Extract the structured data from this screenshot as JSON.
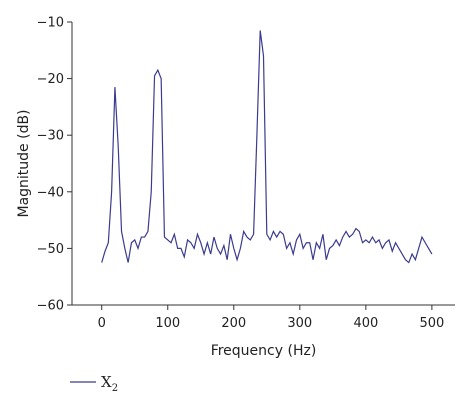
{
  "chart_data": {
    "type": "line",
    "xlabel": "Frequency (Hz)",
    "ylabel": "Magnitude (dB)",
    "xlim": [
      -45,
      535
    ],
    "ylim": [
      -60,
      -10
    ],
    "xticks": [
      0,
      100,
      200,
      300,
      400,
      500
    ],
    "yticks": [
      -10,
      -20,
      -30,
      -40,
      -50,
      -60
    ],
    "xtick_labels": [
      "0",
      "100",
      "200",
      "300",
      "400",
      "500"
    ],
    "ytick_labels": [
      "−10",
      "−20",
      "−30",
      "−40",
      "−50",
      "−60"
    ],
    "legend": {
      "position": "bottom-left",
      "label_main": "X",
      "label_sub": "2"
    },
    "colors": {
      "line": "#3b3b8f",
      "axis": "#333333"
    },
    "series": [
      {
        "x": [
          0,
          5,
          10,
          15,
          20,
          25,
          30,
          35,
          40,
          45,
          50,
          55,
          60,
          65,
          70,
          75,
          80,
          85,
          90,
          95,
          100,
          105,
          110,
          115,
          120,
          125,
          130,
          135,
          140,
          145,
          150,
          155,
          160,
          165,
          170,
          175,
          180,
          185,
          190,
          195,
          200,
          205,
          210,
          215,
          220,
          225,
          230,
          235,
          240,
          245,
          250,
          255,
          260,
          265,
          270,
          275,
          280,
          285,
          290,
          295,
          300,
          305,
          310,
          315,
          320,
          325,
          330,
          335,
          340,
          345,
          350,
          355,
          360,
          365,
          370,
          375,
          380,
          385,
          390,
          395,
          400,
          405,
          410,
          415,
          420,
          425,
          430,
          435,
          440,
          445,
          450,
          455,
          460,
          465,
          470,
          475,
          480,
          485,
          490,
          495,
          500
        ],
        "y": [
          -52.5,
          -50.5,
          -49,
          -40,
          -21.5,
          -32,
          -47,
          -50,
          -52.5,
          -49,
          -48.5,
          -50,
          -48,
          -48,
          -47,
          -40,
          -19.5,
          -18.5,
          -20,
          -48,
          -48.5,
          -49,
          -47.5,
          -50,
          -50,
          -51.5,
          -48.5,
          -49,
          -50,
          -47.5,
          -49,
          -51,
          -49,
          -51,
          -48,
          -50,
          -51,
          -49.5,
          -52,
          -47.5,
          -50,
          -52,
          -50,
          -47,
          -48,
          -48.5,
          -47.5,
          -30,
          -11.5,
          -16,
          -47.5,
          -48.5,
          -47,
          -48,
          -47,
          -47.5,
          -50,
          -49,
          -51,
          -48.5,
          -47.5,
          -50,
          -49,
          -49,
          -52,
          -49,
          -50,
          -47.5,
          -52,
          -50,
          -49.5,
          -48.5,
          -49.5,
          -48,
          -47,
          -48,
          -47.5,
          -46.5,
          -47,
          -49,
          -48.5,
          -49,
          -48,
          -49,
          -48.5,
          -50,
          -49,
          -48.5,
          -50.5,
          -49,
          -50,
          -51,
          -52,
          -52.5,
          -51,
          -52,
          -50,
          -48,
          -49,
          -50,
          -51
        ]
      }
    ]
  }
}
